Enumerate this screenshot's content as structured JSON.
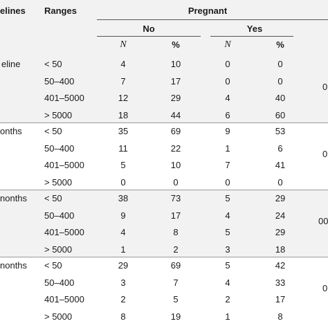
{
  "table": {
    "headers": {
      "baselines": "elines",
      "ranges": "Ranges",
      "pregnant": "Pregnant",
      "no": "No",
      "yes": "Yes",
      "n": "N",
      "pct": "%"
    },
    "groups": [
      {
        "label": "eline",
        "side": "0",
        "shaded": true,
        "rows": [
          {
            "range": "< 50",
            "no_n": "4",
            "no_pct": "10",
            "yes_n": "0",
            "yes_pct": "0"
          },
          {
            "range": "50–400",
            "no_n": "7",
            "no_pct": "17",
            "yes_n": "0",
            "yes_pct": "0"
          },
          {
            "range": "401–5000",
            "no_n": "12",
            "no_pct": "29",
            "yes_n": "4",
            "yes_pct": "40"
          },
          {
            "range": "> 5000",
            "no_n": "18",
            "no_pct": "44",
            "yes_n": "6",
            "yes_pct": "60"
          }
        ]
      },
      {
        "label": "onths",
        "side": "0",
        "shaded": false,
        "rows": [
          {
            "range": "< 50",
            "no_n": "35",
            "no_pct": "69",
            "yes_n": "9",
            "yes_pct": "53"
          },
          {
            "range": "50–400",
            "no_n": "11",
            "no_pct": "22",
            "yes_n": "1",
            "yes_pct": "6"
          },
          {
            "range": "401–5000",
            "no_n": "5",
            "no_pct": "10",
            "yes_n": "7",
            "yes_pct": "41"
          },
          {
            "range": "> 5000",
            "no_n": "0",
            "no_pct": "0",
            "yes_n": "0",
            "yes_pct": "0"
          }
        ]
      },
      {
        "label": "nonths",
        "side": "00",
        "shaded": true,
        "rows": [
          {
            "range": "< 50",
            "no_n": "38",
            "no_pct": "73",
            "yes_n": "5",
            "yes_pct": "29"
          },
          {
            "range": "50–400",
            "no_n": "9",
            "no_pct": "17",
            "yes_n": "4",
            "yes_pct": "24"
          },
          {
            "range": "401–5000",
            "no_n": "4",
            "no_pct": "8",
            "yes_n": "5",
            "yes_pct": "29"
          },
          {
            "range": "> 5000",
            "no_n": "1",
            "no_pct": "2",
            "yes_n": "3",
            "yes_pct": "18"
          }
        ]
      },
      {
        "label": "nonths",
        "side": "0",
        "shaded": false,
        "rows": [
          {
            "range": "< 50",
            "no_n": "29",
            "no_pct": "69",
            "yes_n": "5",
            "yes_pct": "42"
          },
          {
            "range": "50–400",
            "no_n": "3",
            "no_pct": "7",
            "yes_n": "4",
            "yes_pct": "33"
          },
          {
            "range": "401–5000",
            "no_n": "2",
            "no_pct": "5",
            "yes_n": "2",
            "yes_pct": "17"
          },
          {
            "range": "> 5000",
            "no_n": "8",
            "no_pct": "19",
            "yes_n": "1",
            "yes_pct": "8"
          }
        ]
      }
    ],
    "colors": {
      "header_bg": "#f2f2f2",
      "shaded_band": "#f2f2f2",
      "rule": "#555555",
      "text": "#1a1a1a"
    }
  }
}
